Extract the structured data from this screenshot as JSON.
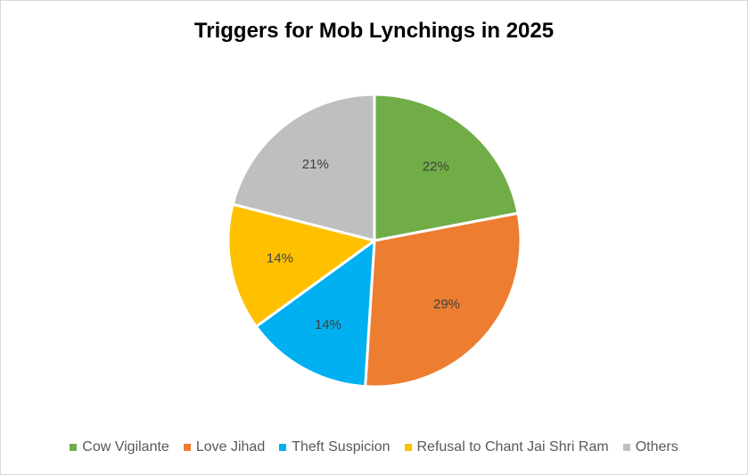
{
  "chart_data": {
    "type": "pie",
    "title": "Triggers for Mob Lynchings in 2025",
    "slices": [
      {
        "label": "Cow Vigilante",
        "value": 22,
        "data_label": "22%",
        "color": "#70ad47"
      },
      {
        "label": "Love Jihad",
        "value": 29,
        "data_label": "29%",
        "color": "#ed7d31"
      },
      {
        "label": "Theft Suspicion",
        "value": 14,
        "data_label": "14%",
        "color": "#00b0f0"
      },
      {
        "label": "Refusal to Chant Jai Shri Ram",
        "value": 14,
        "data_label": "14%",
        "color": "#ffc000"
      },
      {
        "label": "Others",
        "value": 21,
        "data_label": "21%",
        "color": "#bfbfbf"
      }
    ],
    "legend_position": "bottom",
    "start_angle": "12 o'clock",
    "direction": "clockwise"
  }
}
